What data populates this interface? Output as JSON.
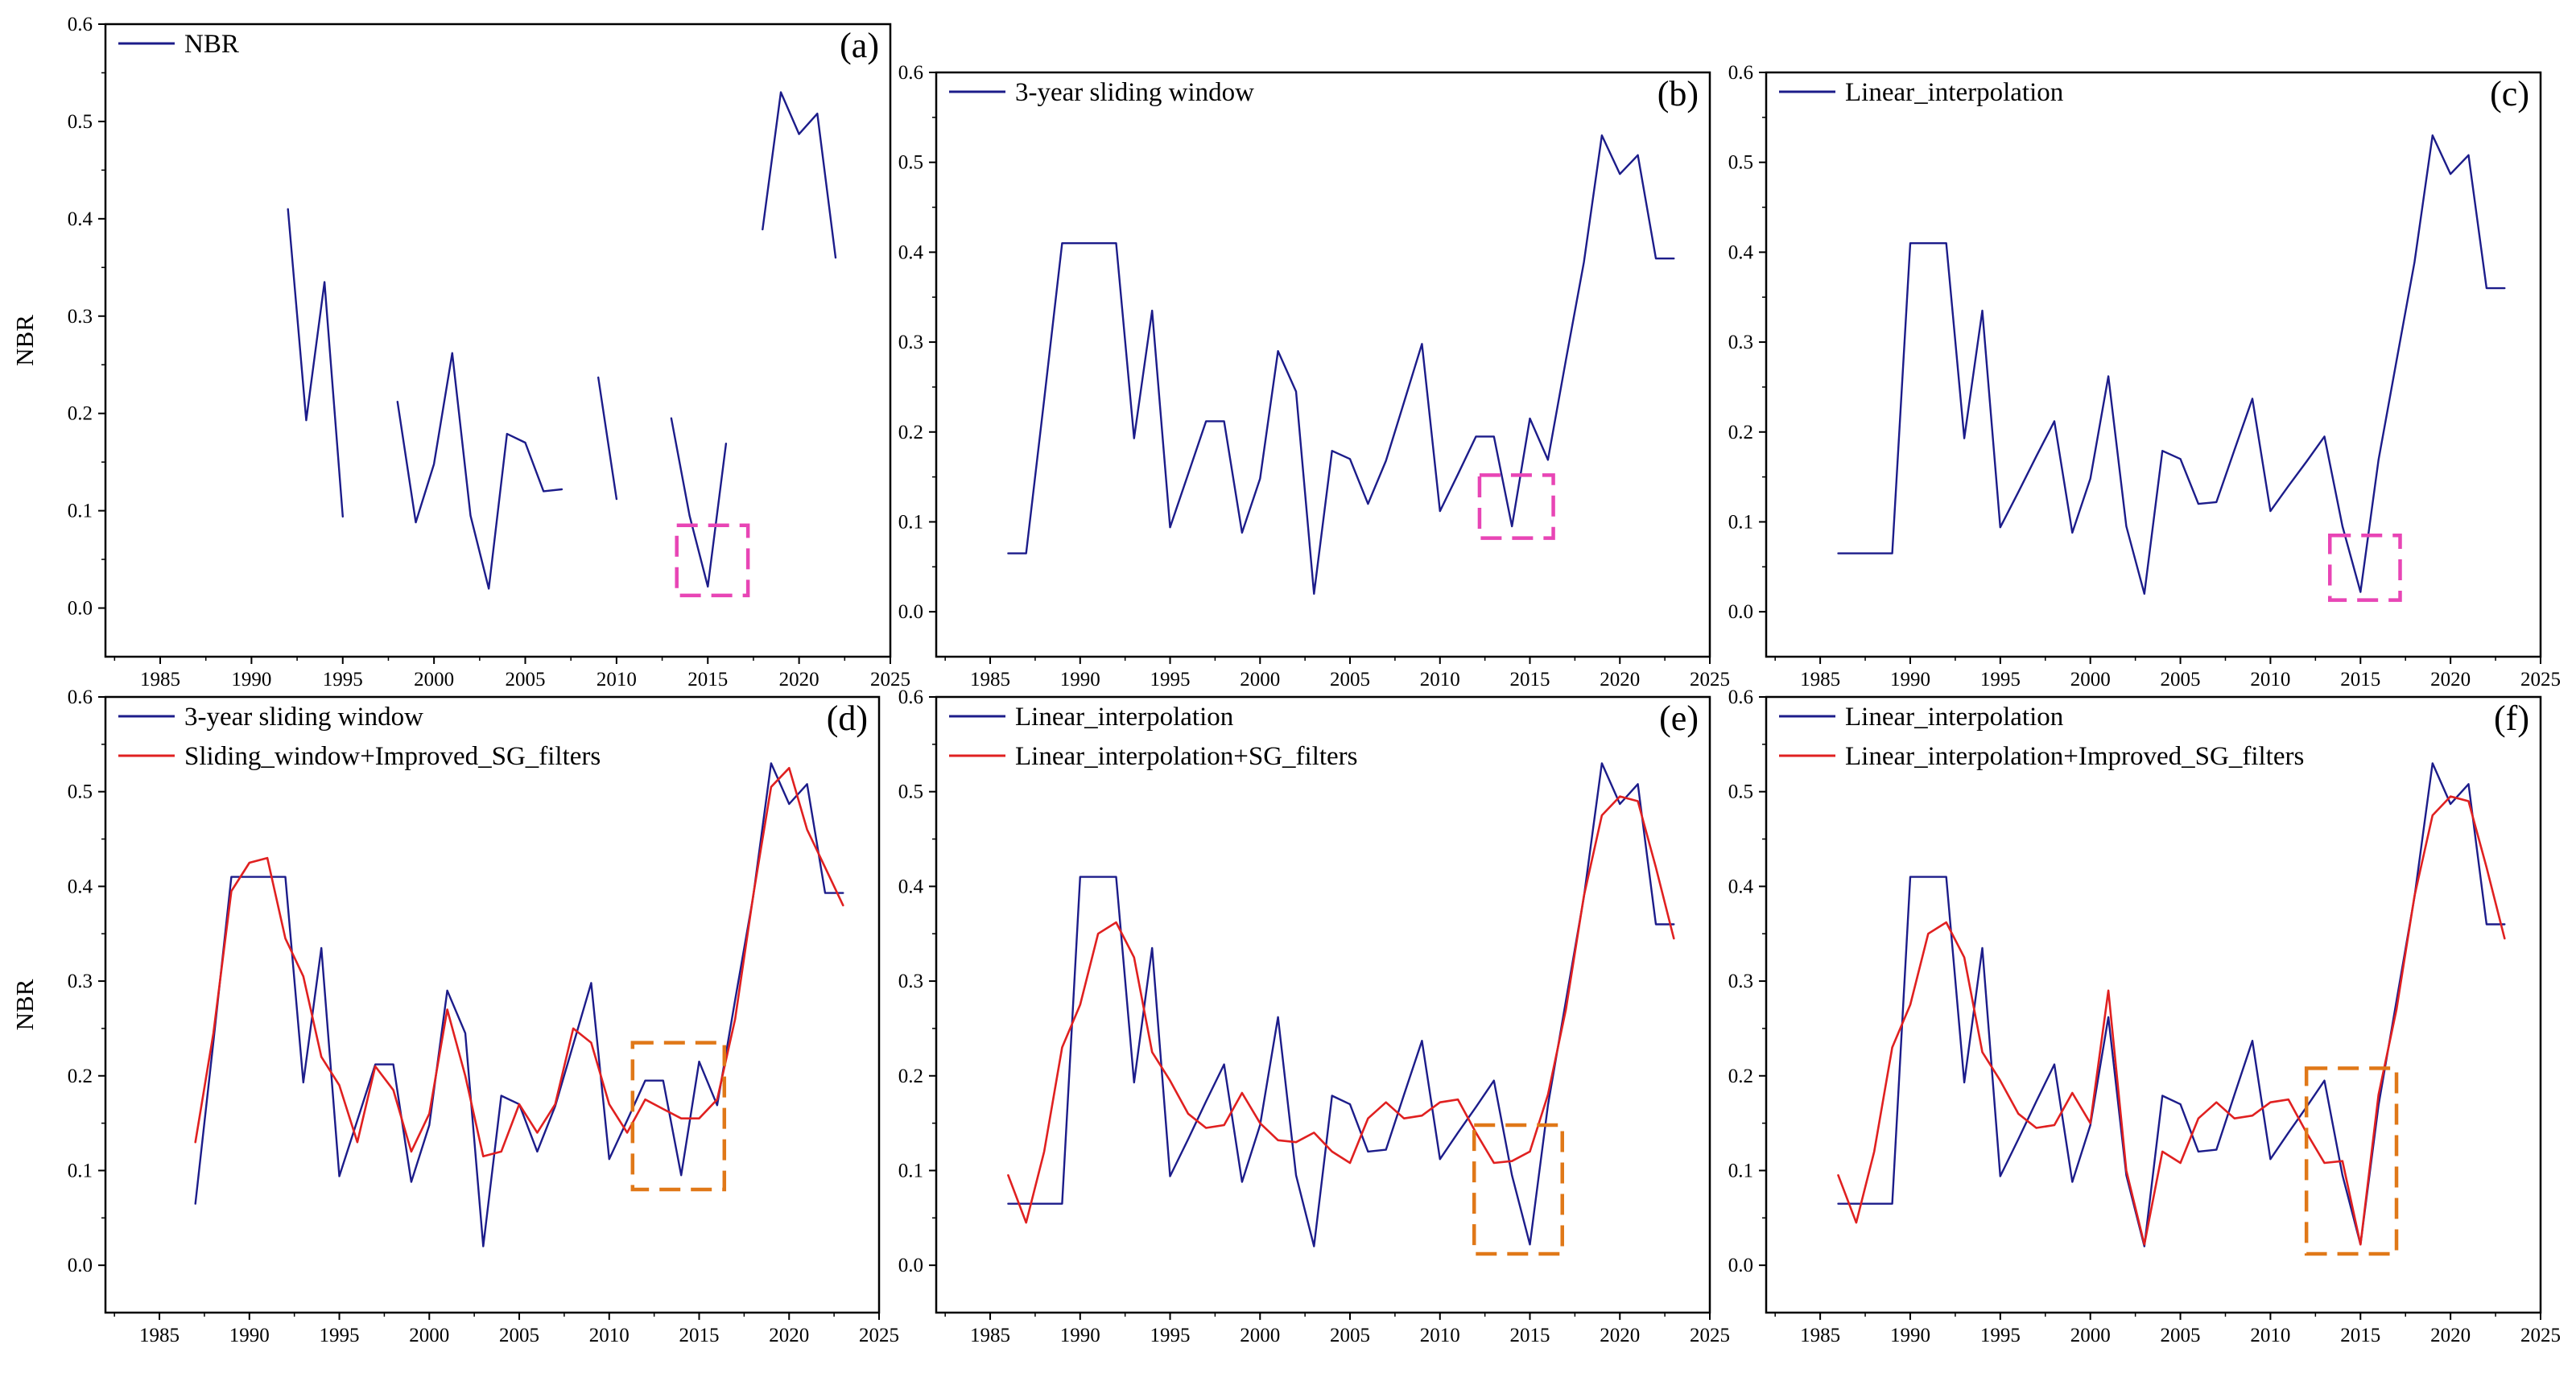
{
  "colors": {
    "blue_series": "#1c1c8a",
    "red_series": "#e02020",
    "highlight_magenta": "#e845b5",
    "highlight_orange": "#e07818",
    "axis": "#000000"
  },
  "chart_data": [
    {
      "id": "a",
      "type": "line",
      "panel_label": "(a)",
      "ylabel": "NBR",
      "xlabel": "",
      "xlim": [
        1982,
        2025
      ],
      "ylim": [
        -0.05,
        0.6
      ],
      "xticks": [
        1985,
        1990,
        1995,
        2000,
        2005,
        2010,
        2015,
        2020,
        2025
      ],
      "yticks": [
        0.0,
        0.1,
        0.2,
        0.3,
        0.4,
        0.5,
        0.6
      ],
      "series": [
        {
          "name": "NBR",
          "color_key": "blue_series",
          "x": [
            1992,
            1993,
            1994,
            1995,
            1996,
            1997,
            1998,
            1999,
            2000,
            2001,
            2002,
            2003,
            2004,
            2005,
            2006,
            2007,
            2008,
            2009,
            2010,
            2011,
            2012,
            2013,
            2014,
            2015,
            2016,
            2017,
            2018,
            2019,
            2020,
            2021,
            2022
          ],
          "y": [
            0.41,
            0.193,
            0.335,
            0.094,
            null,
            null,
            0.212,
            0.088,
            0.148,
            0.262,
            0.095,
            0.02,
            0.179,
            0.17,
            0.12,
            0.122,
            null,
            0.237,
            0.112,
            null,
            null,
            0.195,
            0.095,
            0.022,
            0.169,
            null,
            0.389,
            0.53,
            0.487,
            0.508,
            0.36
          ]
        }
      ],
      "highlight_box": {
        "x": [
          2013.3,
          2017.2
        ],
        "y": [
          0.013,
          0.085
        ],
        "color_key": "highlight_magenta"
      }
    },
    {
      "id": "b",
      "type": "line",
      "panel_label": "(b)",
      "ylabel": "",
      "xlabel": "",
      "xlim": [
        1982,
        2025
      ],
      "ylim": [
        -0.05,
        0.6
      ],
      "xticks": [
        1985,
        1990,
        1995,
        2000,
        2005,
        2010,
        2015,
        2020,
        2025
      ],
      "yticks": [
        0.0,
        0.1,
        0.2,
        0.3,
        0.4,
        0.5,
        0.6
      ],
      "series": [
        {
          "name": "3-year sliding window",
          "color_key": "blue_series",
          "x": [
            1986,
            1987,
            1988,
            1989,
            1990,
            1991,
            1992,
            1993,
            1994,
            1995,
            1996,
            1997,
            1998,
            1999,
            2000,
            2001,
            2002,
            2003,
            2004,
            2005,
            2006,
            2007,
            2008,
            2009,
            2010,
            2011,
            2012,
            2013,
            2014,
            2015,
            2016,
            2017,
            2018,
            2019,
            2020,
            2021,
            2022,
            2023
          ],
          "y": [
            0.065,
            0.065,
            0.236,
            0.41,
            0.41,
            0.41,
            0.41,
            0.193,
            0.335,
            0.094,
            0.153,
            0.212,
            0.212,
            0.088,
            0.148,
            0.29,
            0.245,
            0.02,
            0.179,
            0.17,
            0.12,
            0.168,
            0.233,
            0.298,
            0.112,
            0.153,
            0.195,
            0.195,
            0.095,
            0.215,
            0.169,
            0.28,
            0.389,
            0.53,
            0.487,
            0.508,
            0.393,
            0.393
          ]
        }
      ],
      "highlight_box": {
        "x": [
          2012.2,
          2016.3
        ],
        "y": [
          0.082,
          0.152
        ],
        "color_key": "highlight_magenta"
      }
    },
    {
      "id": "c",
      "type": "line",
      "panel_label": "(c)",
      "ylabel": "",
      "xlabel": "",
      "xlim": [
        1982,
        2025
      ],
      "ylim": [
        -0.05,
        0.6
      ],
      "xticks": [
        1985,
        1990,
        1995,
        2000,
        2005,
        2010,
        2015,
        2020,
        2025
      ],
      "yticks": [
        0.0,
        0.1,
        0.2,
        0.3,
        0.4,
        0.5,
        0.6
      ],
      "series": [
        {
          "name": "Linear_interpolation",
          "color_key": "blue_series",
          "x": [
            1986,
            1987,
            1988,
            1989,
            1990,
            1991,
            1992,
            1993,
            1994,
            1995,
            1996,
            1997,
            1998,
            1999,
            2000,
            2001,
            2002,
            2003,
            2004,
            2005,
            2006,
            2007,
            2008,
            2009,
            2010,
            2011,
            2012,
            2013,
            2014,
            2015,
            2016,
            2017,
            2018,
            2019,
            2020,
            2021,
            2022,
            2023
          ],
          "y": [
            0.065,
            0.065,
            0.065,
            0.065,
            0.41,
            0.41,
            0.41,
            0.193,
            0.335,
            0.094,
            0.133,
            0.173,
            0.212,
            0.088,
            0.148,
            0.262,
            0.095,
            0.02,
            0.179,
            0.17,
            0.12,
            0.122,
            0.18,
            0.237,
            0.112,
            0.14,
            0.167,
            0.195,
            0.095,
            0.022,
            0.169,
            0.279,
            0.389,
            0.53,
            0.487,
            0.508,
            0.36,
            0.36
          ]
        }
      ],
      "highlight_box": {
        "x": [
          2013.3,
          2017.2
        ],
        "y": [
          0.013,
          0.085
        ],
        "color_key": "highlight_magenta"
      }
    },
    {
      "id": "d",
      "type": "line",
      "panel_label": "(d)",
      "ylabel": "NBR",
      "xlabel": "",
      "xlim": [
        1982,
        2025
      ],
      "ylim": [
        -0.05,
        0.6
      ],
      "xticks": [
        1985,
        1990,
        1995,
        2000,
        2005,
        2010,
        2015,
        2020,
        2025
      ],
      "yticks": [
        0.0,
        0.1,
        0.2,
        0.3,
        0.4,
        0.5,
        0.6
      ],
      "series": [
        {
          "name": "3-year sliding window",
          "color_key": "blue_series",
          "x": [
            1987,
            1988,
            1989,
            1990,
            1991,
            1992,
            1993,
            1994,
            1995,
            1996,
            1997,
            1998,
            1999,
            2000,
            2001,
            2002,
            2003,
            2004,
            2005,
            2006,
            2007,
            2008,
            2009,
            2010,
            2011,
            2012,
            2013,
            2014,
            2015,
            2016,
            2017,
            2018,
            2019,
            2020,
            2021,
            2022,
            2023
          ],
          "y": [
            0.065,
            0.236,
            0.41,
            0.41,
            0.41,
            0.41,
            0.193,
            0.335,
            0.094,
            0.153,
            0.212,
            0.212,
            0.088,
            0.148,
            0.29,
            0.245,
            0.02,
            0.179,
            0.17,
            0.12,
            0.168,
            0.233,
            0.298,
            0.112,
            0.153,
            0.195,
            0.195,
            0.095,
            0.215,
            0.169,
            0.28,
            0.389,
            0.53,
            0.487,
            0.508,
            0.393,
            0.393
          ]
        },
        {
          "name": "Sliding_window+Improved_SG_filters",
          "color_key": "red_series",
          "x": [
            1987,
            1988,
            1989,
            1990,
            1991,
            1992,
            1993,
            1994,
            1995,
            1996,
            1997,
            1998,
            1999,
            2000,
            2001,
            2002,
            2003,
            2004,
            2005,
            2006,
            2007,
            2008,
            2009,
            2010,
            2011,
            2012,
            2013,
            2014,
            2015,
            2016,
            2017,
            2018,
            2019,
            2020,
            2021,
            2022,
            2023
          ],
          "y": [
            0.13,
            0.245,
            0.395,
            0.425,
            0.43,
            0.345,
            0.305,
            0.22,
            0.19,
            0.13,
            0.21,
            0.185,
            0.12,
            0.16,
            0.27,
            0.2,
            0.115,
            0.12,
            0.17,
            0.14,
            0.17,
            0.25,
            0.235,
            0.17,
            0.14,
            0.175,
            0.165,
            0.155,
            0.155,
            0.175,
            0.26,
            0.39,
            0.505,
            0.525,
            0.46,
            0.42,
            0.38
          ]
        }
      ],
      "highlight_box": {
        "x": [
          2011.3,
          2016.4
        ],
        "y": [
          0.08,
          0.235
        ],
        "color_key": "highlight_orange"
      }
    },
    {
      "id": "e",
      "type": "line",
      "panel_label": "(e)",
      "ylabel": "",
      "xlabel": "",
      "xlim": [
        1982,
        2025
      ],
      "ylim": [
        -0.05,
        0.6
      ],
      "xticks": [
        1985,
        1990,
        1995,
        2000,
        2005,
        2010,
        2015,
        2020,
        2025
      ],
      "yticks": [
        0.0,
        0.1,
        0.2,
        0.3,
        0.4,
        0.5,
        0.6
      ],
      "series": [
        {
          "name": "Linear_interpolation",
          "color_key": "blue_series",
          "x": [
            1986,
            1987,
            1988,
            1989,
            1990,
            1991,
            1992,
            1993,
            1994,
            1995,
            1996,
            1997,
            1998,
            1999,
            2000,
            2001,
            2002,
            2003,
            2004,
            2005,
            2006,
            2007,
            2008,
            2009,
            2010,
            2011,
            2012,
            2013,
            2014,
            2015,
            2016,
            2017,
            2018,
            2019,
            2020,
            2021,
            2022,
            2023
          ],
          "y": [
            0.065,
            0.065,
            0.065,
            0.065,
            0.41,
            0.41,
            0.41,
            0.193,
            0.335,
            0.094,
            0.133,
            0.173,
            0.212,
            0.088,
            0.148,
            0.262,
            0.095,
            0.02,
            0.179,
            0.17,
            0.12,
            0.122,
            0.18,
            0.237,
            0.112,
            0.14,
            0.167,
            0.195,
            0.095,
            0.022,
            0.169,
            0.279,
            0.389,
            0.53,
            0.487,
            0.508,
            0.36,
            0.36
          ]
        },
        {
          "name": "Linear_interpolation+SG_filters",
          "color_key": "red_series",
          "x": [
            1986,
            1987,
            1988,
            1989,
            1990,
            1991,
            1992,
            1993,
            1994,
            1995,
            1996,
            1997,
            1998,
            1999,
            2000,
            2001,
            2002,
            2003,
            2004,
            2005,
            2006,
            2007,
            2008,
            2009,
            2010,
            2011,
            2012,
            2013,
            2014,
            2015,
            2016,
            2017,
            2018,
            2019,
            2020,
            2021,
            2022,
            2023
          ],
          "y": [
            0.095,
            0.045,
            0.12,
            0.23,
            0.275,
            0.35,
            0.362,
            0.325,
            0.225,
            0.195,
            0.16,
            0.145,
            0.148,
            0.182,
            0.15,
            0.132,
            0.13,
            0.14,
            0.12,
            0.108,
            0.155,
            0.172,
            0.155,
            0.158,
            0.172,
            0.175,
            0.14,
            0.108,
            0.11,
            0.12,
            0.18,
            0.27,
            0.39,
            0.475,
            0.495,
            0.49,
            0.42,
            0.345
          ]
        }
      ],
      "highlight_box": {
        "x": [
          2011.9,
          2016.8
        ],
        "y": [
          0.012,
          0.148
        ],
        "color_key": "highlight_orange"
      }
    },
    {
      "id": "f",
      "type": "line",
      "panel_label": "(f)",
      "ylabel": "",
      "xlabel": "",
      "xlim": [
        1982,
        2025
      ],
      "ylim": [
        -0.05,
        0.6
      ],
      "xticks": [
        1985,
        1990,
        1995,
        2000,
        2005,
        2010,
        2015,
        2020,
        2025
      ],
      "yticks": [
        0.0,
        0.1,
        0.2,
        0.3,
        0.4,
        0.5,
        0.6
      ],
      "series": [
        {
          "name": "Linear_interpolation",
          "color_key": "blue_series",
          "x": [
            1986,
            1987,
            1988,
            1989,
            1990,
            1991,
            1992,
            1993,
            1994,
            1995,
            1996,
            1997,
            1998,
            1999,
            2000,
            2001,
            2002,
            2003,
            2004,
            2005,
            2006,
            2007,
            2008,
            2009,
            2010,
            2011,
            2012,
            2013,
            2014,
            2015,
            2016,
            2017,
            2018,
            2019,
            2020,
            2021,
            2022,
            2023
          ],
          "y": [
            0.065,
            0.065,
            0.065,
            0.065,
            0.41,
            0.41,
            0.41,
            0.193,
            0.335,
            0.094,
            0.133,
            0.173,
            0.212,
            0.088,
            0.148,
            0.262,
            0.095,
            0.02,
            0.179,
            0.17,
            0.12,
            0.122,
            0.18,
            0.237,
            0.112,
            0.14,
            0.167,
            0.195,
            0.095,
            0.022,
            0.169,
            0.279,
            0.389,
            0.53,
            0.487,
            0.508,
            0.36,
            0.36
          ]
        },
        {
          "name": "Linear_interpolation+Improved_SG_filters",
          "color_key": "red_series",
          "x": [
            1986,
            1987,
            1988,
            1989,
            1990,
            1991,
            1992,
            1993,
            1994,
            1995,
            1996,
            1997,
            1998,
            1999,
            2000,
            2001,
            2002,
            2003,
            2004,
            2005,
            2006,
            2007,
            2008,
            2009,
            2010,
            2011,
            2012,
            2013,
            2014,
            2015,
            2016,
            2017,
            2018,
            2019,
            2020,
            2021,
            2022,
            2023
          ],
          "y": [
            0.095,
            0.045,
            0.12,
            0.23,
            0.275,
            0.35,
            0.362,
            0.325,
            0.225,
            0.195,
            0.16,
            0.145,
            0.148,
            0.182,
            0.15,
            0.29,
            0.1,
            0.022,
            0.12,
            0.108,
            0.155,
            0.172,
            0.155,
            0.158,
            0.172,
            0.175,
            0.14,
            0.108,
            0.11,
            0.022,
            0.18,
            0.27,
            0.39,
            0.475,
            0.495,
            0.49,
            0.42,
            0.345
          ]
        }
      ],
      "highlight_box": {
        "x": [
          2012.0,
          2017.0
        ],
        "y": [
          0.012,
          0.208
        ],
        "color_key": "highlight_orange"
      }
    }
  ]
}
